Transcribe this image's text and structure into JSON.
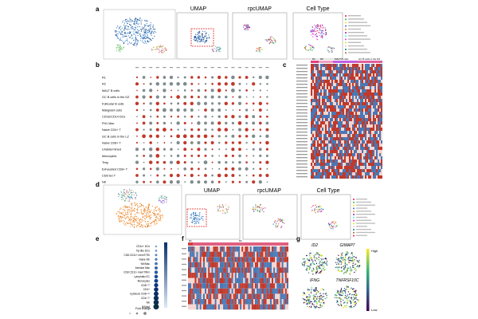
{
  "panels": {
    "a": "a",
    "b": "b",
    "c": "c",
    "d": "d",
    "e": "e",
    "f": "f",
    "g": "g"
  },
  "titles": {
    "umap_top": "UMAP",
    "rpcumap_top": "rpcUMAP",
    "celltype_top": "Cell Type",
    "umap_bottom": "UMAP",
    "rpcumap_bottom": "rpcUMAP",
    "celltype_bottom": "Cell Type"
  },
  "panel_b_rows": [
    "R1",
    "R2",
    "MALT B cells",
    "GC B cells in the DZ",
    "Follicular B cells",
    "Malignant cells",
    "CD1E/CD14 DCs",
    "FN1 Mac",
    "Naive CD4+ T",
    "GC B cells in the LZ",
    "Naive CD8+ T",
    "Undetermined",
    "Monocytes",
    "Treg",
    "Exhausted CD8+ T",
    "CD8 tex T",
    "NK"
  ],
  "panel_c_header": [
    "R1",
    "R2",
    "MALT B cells",
    "GC B cells in the DZ"
  ],
  "panel_e_rows": [
    "CD1c+ DCs",
    "Tip-like DCs",
    "CD8 CD11+ memT/Tfh",
    "Naive NK",
    "NK/Mac",
    "Alveolar Mac",
    "CD8 CD11+ memT/Rm",
    "Lymphatic EC",
    "Monocytes",
    "CD8+ T",
    "CD4+",
    "Cytotoxic CD8+ T",
    "CD4+ T",
    "NK",
    "B/Mast"
  ],
  "panel_e_legend_title": "Fold change",
  "panel_f_header": [
    "R1",
    "R2"
  ],
  "panel_g": {
    "genes": [
      "ID2",
      "GIMAP7",
      "IFNG",
      "TNFRSF10C"
    ],
    "high": "High",
    "low": "Low"
  },
  "colors": {
    "heat_red": "#c0392b",
    "heat_blue": "#4a78b5",
    "umap_blue": "#2f6db3",
    "umap_orange": "#f28c28",
    "viridis_low": "#440154",
    "viridis_high": "#fde725",
    "bar_top": "#e060a0",
    "bar_left": "#d04040"
  }
}
